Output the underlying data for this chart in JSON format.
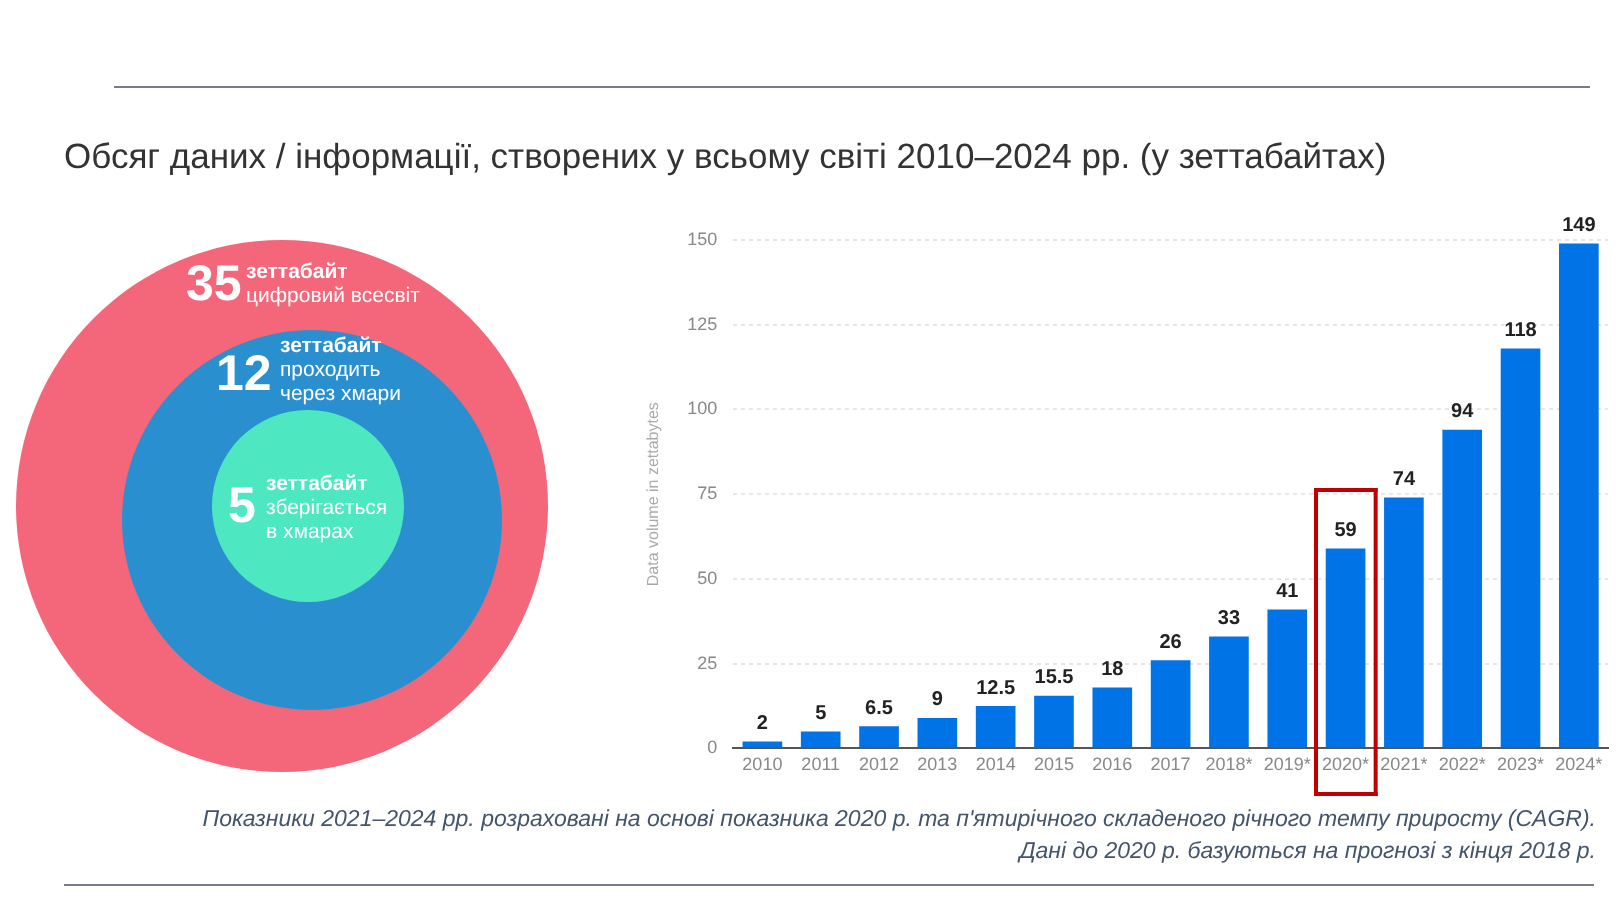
{
  "chart_data": [
    {
      "type": "other",
      "categories": [
        "цифровий всесвіт",
        "проходить через хмари",
        "зберігається в хмарах"
      ],
      "values": [
        35,
        12,
        5
      ],
      "colors": [
        "#f4677b",
        "#2a8fcf",
        "#4de8c2"
      ],
      "annotations": [
        "зеттабайт",
        "зеттабайт",
        "зеттабайт"
      ],
      "data_labels": true
    },
    {
      "type": "bar",
      "title": "Обсяг даних / інформації, створених у всьому світі 2010–2024 рр. (у зеттабайтах)",
      "ylabel": "Data volume in zettabytes",
      "categories": [
        "2010",
        "2011",
        "2012",
        "2013",
        "2014",
        "2015",
        "2016",
        "2017",
        "2018*",
        "2019*",
        "2020*",
        "2021*",
        "2022*",
        "2023*",
        "2024*"
      ],
      "values": [
        2,
        5,
        6.5,
        9,
        12.5,
        15.5,
        18,
        26,
        33,
        41,
        59,
        74,
        94,
        118,
        149
      ],
      "color": "#0073e6",
      "ylim": [
        0,
        150
      ],
      "yticks": [
        0,
        25,
        50,
        75,
        100,
        125,
        150
      ],
      "grid": "y",
      "data_labels": true,
      "annotations": [
        "Показники 2021–2024 рр. розраховані на основі показника 2020 р. та п'ятирічного складеного річного темпу приросту (CAGR).",
        "Дані до 2020 р. базуються на прогнозі з кінця 2018 р."
      ]
    }
  ]
}
